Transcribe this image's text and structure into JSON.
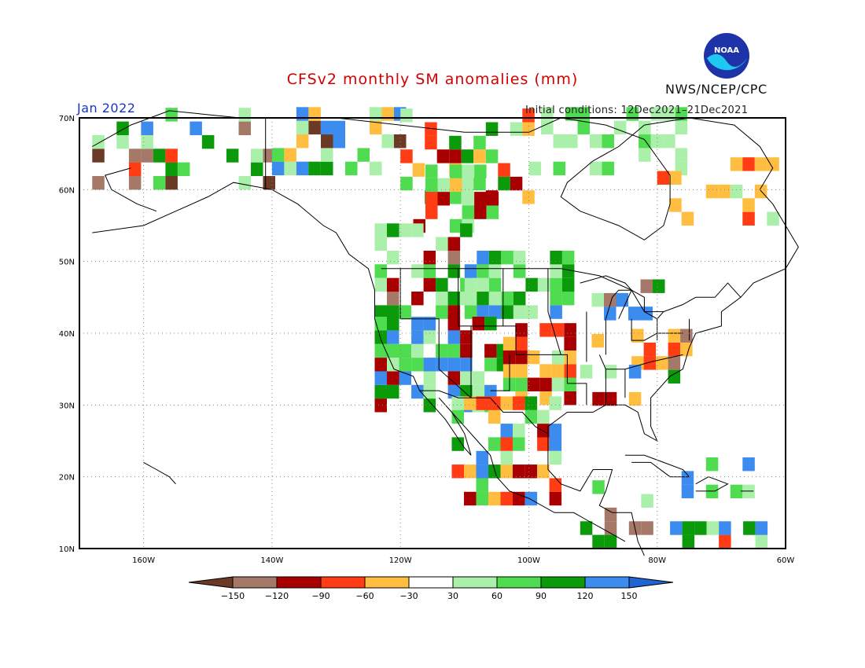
{
  "header": {
    "title": "CFSv2 monthly SM anomalies (mm)",
    "valid_month": "Jan 2022",
    "initial_conditions": "Initial conditions: 12Dec2021–21Dec2021",
    "agency": "NWS/NCEP/CPC",
    "logo_text": "NOAA",
    "title_color": "#d20000",
    "valid_color": "#1a33cc"
  },
  "map": {
    "lon_range": [
      -170,
      -60
    ],
    "lat_range": [
      10,
      70
    ],
    "lat_labels": [
      "70N",
      "60N",
      "50N",
      "40N",
      "30N",
      "20N",
      "10N"
    ],
    "lon_labels": [
      "160W",
      "140W",
      "120W",
      "100W",
      "80W",
      "60W"
    ]
  },
  "colorbar": {
    "labels": [
      "−150",
      "−120",
      "−90",
      "−60",
      "−30",
      "30",
      "60",
      "90",
      "120",
      "150"
    ],
    "colors": [
      "#6b3a26",
      "#a57868",
      "#a80000",
      "#ff3c14",
      "#ffbe40",
      "#ffffff",
      "#aaf0aa",
      "#50dc50",
      "#0a9a0a",
      "#3c8cf0",
      "#1e64d2"
    ]
  },
  "legend_colors": {
    "lt_brown": "#a57868",
    "brown": "#6b3a26",
    "dk_red": "#a80000",
    "red": "#ff3c14",
    "orange": "#ffbe40",
    "lt_green": "#aaf0aa",
    "green": "#50dc50",
    "dk_green": "#0a9a0a",
    "blue": "#3c8cf0"
  }
}
